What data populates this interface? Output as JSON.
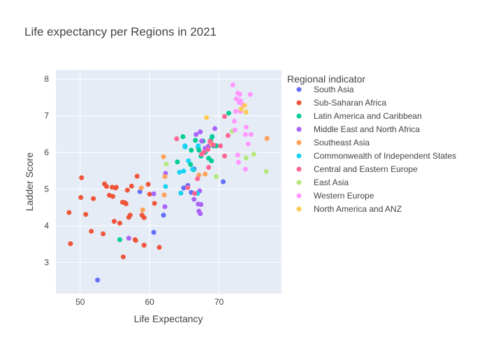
{
  "chart_data": {
    "type": "scatter",
    "title": "Life expectancy per Regions in 2021",
    "xlabel": "Life Expectancy",
    "ylabel": "Ladder Score",
    "xlim": [
      46.5,
      79
    ],
    "ylim": [
      2.15,
      8.25
    ],
    "xticks": [
      50,
      60,
      70
    ],
    "yticks": [
      3,
      4,
      5,
      6,
      7,
      8
    ],
    "grid": true,
    "legend": {
      "title": "Regional indicator",
      "placement": "right"
    },
    "series": [
      {
        "name": "South Asia",
        "color": "#636efa",
        "points": [
          [
            52.5,
            2.52
          ],
          [
            60.6,
            3.82
          ],
          [
            58.6,
            4.93
          ],
          [
            62.0,
            4.29
          ],
          [
            64.9,
            5.03
          ],
          [
            66.0,
            4.91
          ],
          [
            70.6,
            5.2
          ],
          [
            65.5,
            5.1
          ],
          [
            66.4,
            5.55
          ]
        ]
      },
      {
        "name": "Sub-Saharan Africa",
        "color": "#EF553B",
        "points": [
          [
            48.4,
            4.36
          ],
          [
            48.6,
            3.51
          ],
          [
            50.1,
            4.77
          ],
          [
            50.2,
            5.31
          ],
          [
            50.8,
            4.31
          ],
          [
            51.6,
            3.85
          ],
          [
            51.9,
            4.74
          ],
          [
            53.3,
            3.78
          ],
          [
            53.5,
            5.14
          ],
          [
            53.8,
            5.07
          ],
          [
            54.2,
            4.83
          ],
          [
            54.6,
            5.05
          ],
          [
            54.7,
            4.8
          ],
          [
            54.9,
            4.12
          ],
          [
            55.1,
            5.03
          ],
          [
            55.2,
            5.05
          ],
          [
            55.7,
            4.07
          ],
          [
            56.1,
            4.64
          ],
          [
            56.2,
            3.15
          ],
          [
            56.4,
            4.63
          ],
          [
            56.6,
            4.6
          ],
          [
            56.8,
            4.97
          ],
          [
            57.0,
            4.23
          ],
          [
            57.2,
            4.29
          ],
          [
            57.4,
            5.08
          ],
          [
            57.9,
            3.62
          ],
          [
            58.0,
            3.6
          ],
          [
            58.2,
            5.35
          ],
          [
            58.9,
            4.29
          ],
          [
            59.2,
            4.22
          ],
          [
            59.2,
            3.47
          ],
          [
            59.8,
            5.13
          ],
          [
            60.0,
            4.86
          ],
          [
            60.7,
            4.61
          ],
          [
            61.4,
            3.41
          ]
        ]
      },
      {
        "name": "Latin America and Caribbean",
        "color": "#00cc96",
        "points": [
          [
            55.7,
            3.62
          ],
          [
            64.0,
            5.74
          ],
          [
            64.8,
            6.43
          ],
          [
            65.9,
            5.67
          ],
          [
            66.0,
            6.06
          ],
          [
            66.3,
            5.53
          ],
          [
            66.6,
            6.33
          ],
          [
            67.0,
            6.14
          ],
          [
            67.1,
            6.06
          ],
          [
            67.4,
            5.9
          ],
          [
            67.7,
            6.31
          ],
          [
            68.0,
            6.0
          ],
          [
            68.5,
            5.84
          ],
          [
            68.8,
            6.33
          ],
          [
            68.9,
            5.77
          ],
          [
            69.0,
            6.43
          ],
          [
            69.2,
            6.18
          ],
          [
            69.6,
            6.18
          ],
          [
            71.4,
            7.07
          ]
        ]
      },
      {
        "name": "Middle East and North Africa",
        "color": "#ab63fa",
        "points": [
          [
            57.0,
            3.66
          ],
          [
            60.6,
            4.87
          ],
          [
            62.2,
            4.52
          ],
          [
            62.3,
            5.43
          ],
          [
            66.4,
            4.72
          ],
          [
            67.0,
            4.59
          ],
          [
            67.1,
            4.4
          ],
          [
            67.2,
            4.95
          ],
          [
            67.3,
            4.33
          ],
          [
            67.4,
            4.58
          ],
          [
            66.7,
            6.49
          ],
          [
            67.3,
            6.56
          ],
          [
            68.0,
            6.11
          ],
          [
            68.5,
            6.17
          ],
          [
            69.4,
            6.65
          ],
          [
            67.5,
            6.31
          ]
        ]
      },
      {
        "name": "Southeast Asia",
        "color": "#FFA15A",
        "points": [
          [
            58.8,
            5.03
          ],
          [
            59.0,
            4.43
          ],
          [
            62.0,
            5.88
          ],
          [
            62.2,
            5.34
          ],
          [
            62.1,
            4.84
          ],
          [
            67.1,
            5.38
          ],
          [
            68.0,
            5.41
          ],
          [
            68.9,
            6.23
          ],
          [
            76.9,
            6.38
          ]
        ]
      },
      {
        "name": "Commonwealth of Independent States",
        "color": "#19d3f3",
        "points": [
          [
            62.3,
            5.07
          ],
          [
            64.3,
            5.46
          ],
          [
            64.5,
            4.89
          ],
          [
            64.9,
            5.49
          ],
          [
            65.1,
            6.15
          ],
          [
            65.1,
            6.18
          ],
          [
            65.6,
            5.77
          ],
          [
            66.2,
            5.54
          ],
          [
            67.0,
            6.18
          ],
          [
            66.9,
            4.88
          ]
        ]
      },
      {
        "name": "Central and Eastern Europe",
        "color": "#FF6692",
        "points": [
          [
            63.9,
            6.37
          ],
          [
            65.5,
            5.04
          ],
          [
            66.5,
            4.88
          ],
          [
            66.9,
            5.28
          ],
          [
            67.5,
            5.95
          ],
          [
            67.8,
            6.0
          ],
          [
            68.4,
            6.08
          ],
          [
            68.5,
            5.59
          ],
          [
            68.7,
            6.3
          ],
          [
            69.2,
            6.2
          ],
          [
            70.2,
            6.18
          ],
          [
            70.8,
            5.9
          ],
          [
            70.8,
            6.98
          ],
          [
            71.3,
            6.46
          ]
        ]
      },
      {
        "name": "East Asia",
        "color": "#B6E880",
        "points": [
          [
            62.4,
            5.68
          ],
          [
            69.6,
            5.34
          ],
          [
            71.9,
            6.58
          ],
          [
            73.9,
            5.85
          ],
          [
            75.0,
            5.95
          ],
          [
            76.8,
            5.48
          ]
        ]
      },
      {
        "name": "Western Europe",
        "color": "#FF97FF",
        "points": [
          [
            72.0,
            7.84
          ],
          [
            72.2,
            6.85
          ],
          [
            72.3,
            6.61
          ],
          [
            72.4,
            7.12
          ],
          [
            72.5,
            7.46
          ],
          [
            72.7,
            5.93
          ],
          [
            72.7,
            7.62
          ],
          [
            72.9,
            7.36
          ],
          [
            73.0,
            7.58
          ],
          [
            73.1,
            7.12
          ],
          [
            73.4,
            7.3
          ],
          [
            73.8,
            6.49
          ],
          [
            73.8,
            5.54
          ],
          [
            73.9,
            6.69
          ],
          [
            74.2,
            6.23
          ],
          [
            74.5,
            7.58
          ],
          [
            74.6,
            6.49
          ],
          [
            73.1,
            7.41
          ],
          [
            72.8,
            5.73
          ]
        ]
      },
      {
        "name": "North America and ANZ",
        "color": "#FECB52",
        "points": [
          [
            68.2,
            6.95
          ],
          [
            73.2,
            7.18
          ],
          [
            73.7,
            7.28
          ],
          [
            73.9,
            7.1
          ]
        ]
      }
    ]
  }
}
